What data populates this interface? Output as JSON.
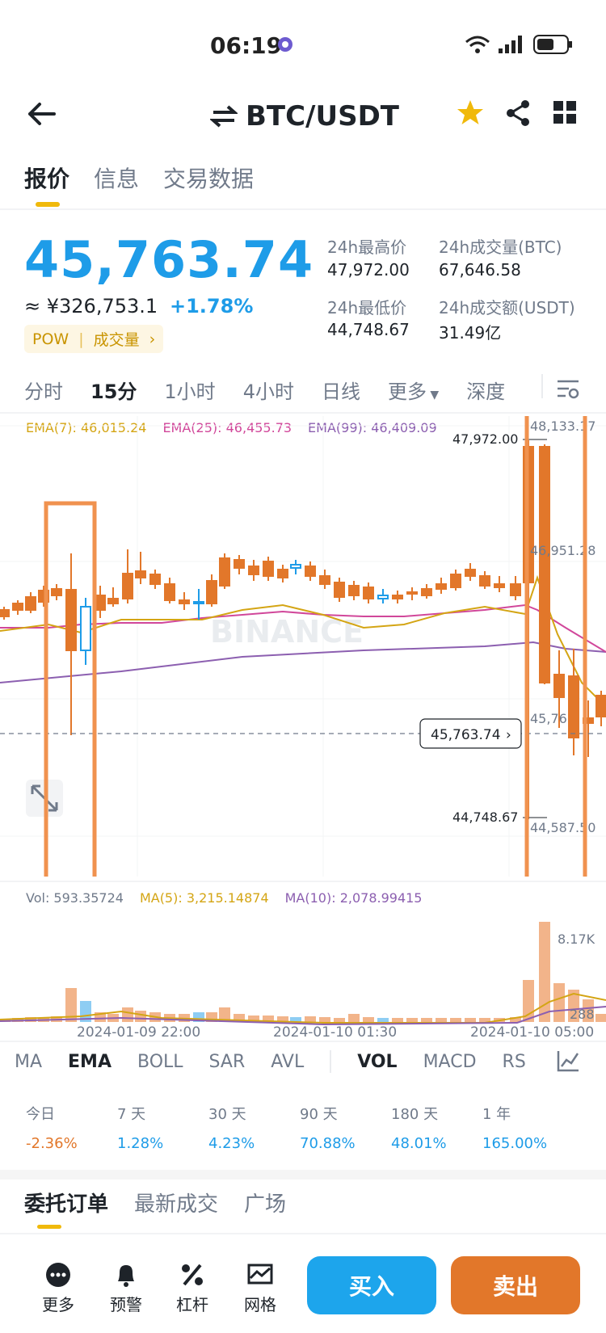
{
  "status": {
    "time": "06:19"
  },
  "header": {
    "pair": "BTC/USDT"
  },
  "tabs": [
    "报价",
    "信息",
    "交易数据"
  ],
  "price": {
    "last": "45,763.74",
    "cny": "≈ ¥326,753.1",
    "change": "+1.78%",
    "pow": "POW",
    "volume_link": "成交量"
  },
  "stats": {
    "high_label": "24h最高价",
    "high": "47,972.00",
    "vol_btc_label": "24h成交量(BTC)",
    "vol_btc": "67,646.58",
    "low_label": "24h最低价",
    "low": "44,748.67",
    "vol_usdt_label": "24h成交额(USDT)",
    "vol_usdt": "31.49亿"
  },
  "intervals": [
    "分时",
    "15分",
    "1小时",
    "4小时",
    "日线",
    "更多",
    "深度"
  ],
  "ema": {
    "ema7": "EMA(7): 46,015.24",
    "ema25": "EMA(25): 46,455.73",
    "ema99": "EMA(99): 46,409.09"
  },
  "chart_labels": {
    "max_right": "48,133.17",
    "high_marker": "47,972.00",
    "mid_right": "46,951.28",
    "last_box": "45,763.74",
    "lower_right": "45,76",
    "low_marker": "44,748.67",
    "min_right": "44,587.50",
    "watermark": "BINANCE"
  },
  "volume": {
    "vol": "Vol: 593.35724",
    "ma5": "MA(5): 3,215.14874",
    "ma10": "MA(10): 2,078.99415",
    "max_label": "8.17K",
    "low_label": "288"
  },
  "xaxis": [
    "2024-01-09 22:00",
    "2024-01-10 01:30",
    "2024-01-10 05:00"
  ],
  "indicators": [
    "MA",
    "EMA",
    "BOLL",
    "SAR",
    "AVL",
    "VOL",
    "MACD",
    "RS"
  ],
  "performance": [
    {
      "label": "今日",
      "value": "-2.36%"
    },
    {
      "label": "7 天",
      "value": "1.28%"
    },
    {
      "label": "30 天",
      "value": "4.23%"
    },
    {
      "label": "90 天",
      "value": "70.88%"
    },
    {
      "label": "180 天",
      "value": "48.01%"
    },
    {
      "label": "1 年",
      "value": "165.00%"
    }
  ],
  "bottom_tabs": [
    "委托订单",
    "最新成交",
    "广场"
  ],
  "nav": [
    "更多",
    "预警",
    "杠杆",
    "网格"
  ],
  "actions": {
    "buy": "买入",
    "sell": "卖出"
  },
  "colors": {
    "up": "#1e9ce8",
    "down": "#e2772a",
    "highlight": "#f0924f",
    "accent": "#f0b90b"
  }
}
